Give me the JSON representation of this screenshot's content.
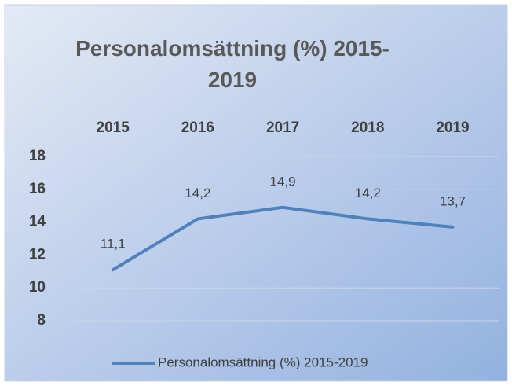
{
  "chart_data": {
    "type": "line",
    "title": "Personalomsättning (%) 2015-2019",
    "categories": [
      "2015",
      "2016",
      "2017",
      "2018",
      "2019"
    ],
    "series": [
      {
        "name": "Personalomsättning (%) 2015-2019",
        "color": "#4f81bd",
        "values": [
          11.1,
          14.2,
          14.9,
          14.2,
          13.7
        ],
        "value_labels": [
          "11,1",
          "14,2",
          "14,9",
          "14,2",
          "13,7"
        ]
      }
    ],
    "ylim": [
      8,
      18
    ],
    "yticks": [
      8,
      10,
      12,
      14,
      16,
      18
    ],
    "grid": true,
    "legend": "bottom"
  }
}
